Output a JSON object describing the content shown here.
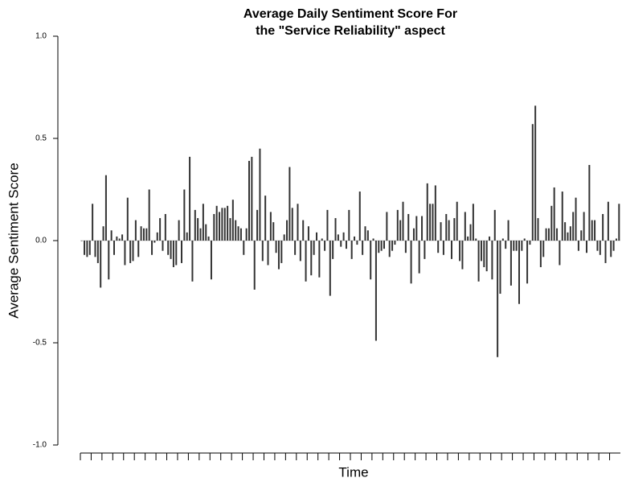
{
  "chart_data": {
    "type": "bar",
    "title": [
      "Average Daily Sentiment Score For",
      "the \"Service Reliability\" aspect"
    ],
    "xlabel": "Time",
    "ylabel": "Average Sentiment Score",
    "color": "#333333",
    "ylim": [
      -1.0,
      1.0
    ],
    "yticks": [
      {
        "value": -1.0,
        "label": "-1.0"
      },
      {
        "value": -0.5,
        "label": "-0.5"
      },
      {
        "value": 0.0,
        "label": "0.0"
      },
      {
        "value": 0.5,
        "label": "0.5"
      },
      {
        "value": 1.0,
        "label": "1.0"
      }
    ],
    "categories": [
      null,
      null,
      null,
      null,
      null,
      null,
      null,
      null,
      null,
      null,
      null,
      null,
      null,
      null,
      null,
      null,
      null,
      null,
      null,
      null,
      null,
      null,
      null,
      null,
      null,
      null,
      null,
      null,
      null,
      null,
      null,
      null,
      null,
      null,
      null,
      null,
      null,
      null,
      null,
      null,
      null,
      null,
      null,
      null,
      null,
      null,
      null,
      null,
      null,
      null,
      null,
      null,
      null,
      null,
      null,
      null,
      null,
      null,
      null,
      null,
      null,
      null,
      null,
      null,
      null,
      null,
      null,
      null,
      null,
      null,
      null,
      null,
      null,
      null,
      null,
      null,
      null,
      null,
      null,
      null,
      null,
      null,
      null,
      null,
      null,
      null,
      null,
      null,
      null,
      null,
      null,
      null,
      null,
      null,
      null,
      null,
      null,
      null,
      null,
      null,
      null,
      null,
      null,
      null,
      null,
      null,
      null,
      null,
      null,
      null,
      null,
      null,
      null,
      null,
      null,
      null,
      null,
      null,
      null,
      null,
      null,
      null,
      null,
      null,
      null,
      null,
      null,
      null,
      null,
      null,
      null,
      null,
      null,
      null,
      null,
      null,
      null,
      null,
      null,
      null,
      null,
      null,
      null,
      null,
      null,
      null,
      null,
      null,
      null,
      null,
      null,
      null,
      null,
      null,
      null,
      null,
      null,
      null,
      null,
      null,
      null,
      null,
      null,
      null,
      null,
      null,
      null,
      null,
      null,
      null,
      null,
      null,
      null,
      null,
      null,
      null,
      null,
      null,
      null,
      null,
      null,
      null,
      null,
      null,
      null,
      null,
      null,
      null,
      null,
      null,
      null,
      null,
      null,
      null,
      null,
      null,
      null,
      null,
      null,
      null
    ],
    "values": [
      0.0,
      -0.07,
      -0.08,
      -0.07,
      0.18,
      -0.08,
      -0.11,
      -0.23,
      0.07,
      0.32,
      -0.19,
      0.05,
      -0.07,
      0.02,
      0.01,
      0.03,
      -0.12,
      0.21,
      -0.11,
      -0.1,
      0.1,
      -0.08,
      0.07,
      0.06,
      0.06,
      0.25,
      -0.07,
      -0.01,
      0.04,
      0.11,
      -0.05,
      0.13,
      -0.07,
      -0.09,
      -0.13,
      -0.12,
      0.1,
      -0.11,
      0.25,
      0.04,
      0.41,
      -0.2,
      0.15,
      0.11,
      0.06,
      0.18,
      0.08,
      0.02,
      -0.19,
      0.13,
      0.17,
      0.14,
      0.16,
      0.16,
      0.17,
      0.11,
      0.2,
      0.1,
      0.07,
      0.06,
      -0.07,
      0.06,
      0.39,
      0.41,
      -0.24,
      0.15,
      0.45,
      -0.1,
      0.22,
      -0.12,
      0.14,
      0.09,
      -0.06,
      -0.14,
      -0.11,
      0.03,
      0.1,
      0.36,
      0.16,
      -0.07,
      0.18,
      -0.1,
      0.1,
      -0.2,
      0.07,
      -0.17,
      -0.07,
      0.04,
      -0.18,
      0.01,
      -0.05,
      0.15,
      -0.27,
      -0.09,
      0.11,
      0.03,
      -0.03,
      0.04,
      -0.04,
      0.15,
      -0.09,
      0.02,
      -0.02,
      0.24,
      -0.07,
      0.07,
      0.05,
      -0.19,
      0.01,
      -0.49,
      -0.06,
      -0.05,
      -0.04,
      0.14,
      -0.08,
      -0.05,
      -0.02,
      0.15,
      0.1,
      0.19,
      -0.06,
      0.13,
      -0.21,
      0.06,
      0.12,
      -0.16,
      0.12,
      -0.09,
      0.28,
      0.18,
      0.18,
      0.27,
      -0.06,
      0.09,
      -0.07,
      0.13,
      0.1,
      -0.09,
      0.11,
      0.19,
      -0.1,
      -0.14,
      0.14,
      0.02,
      0.08,
      0.18,
      0.01,
      -0.2,
      -0.1,
      -0.13,
      -0.15,
      0.02,
      -0.19,
      0.15,
      -0.57,
      -0.26,
      0.01,
      -0.04,
      0.1,
      -0.22,
      -0.05,
      -0.05,
      -0.31,
      -0.05,
      0.01,
      -0.21,
      -0.02,
      0.57,
      0.66,
      0.11,
      -0.13,
      -0.08,
      0.06,
      0.06,
      0.17,
      0.26,
      0.06,
      -0.12,
      0.24,
      0.09,
      0.04,
      0.07,
      0.14,
      0.21,
      -0.05,
      0.05,
      0.14,
      -0.06,
      0.37,
      0.1,
      0.1,
      -0.05,
      -0.07,
      0.13,
      -0.11,
      0.19,
      -0.08,
      -0.05,
      0.01,
      0.18
    ]
  }
}
